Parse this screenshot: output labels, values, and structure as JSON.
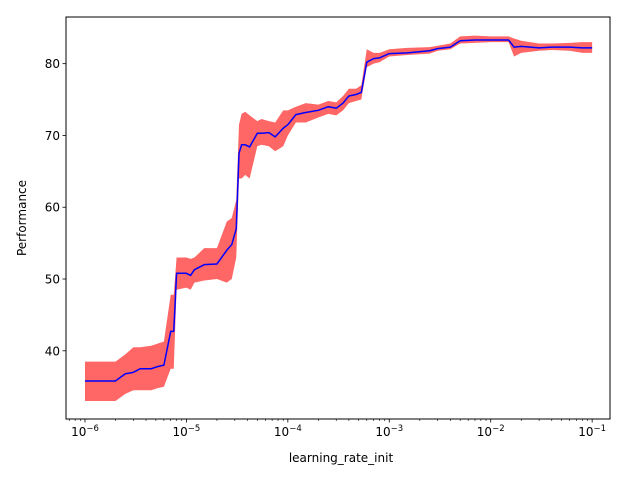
{
  "chart_data": {
    "type": "line",
    "title": "",
    "xlabel": "learning_rate_init",
    "ylabel": "Performance",
    "xscale": "log",
    "xlim": [
      6.5e-07,
      0.15
    ],
    "ylim": [
      30.5,
      86.5
    ],
    "grid": false,
    "legend": "none",
    "x_ticks": [
      {
        "value": 1e-06,
        "base": "10",
        "exp": "−6"
      },
      {
        "value": 1e-05,
        "base": "10",
        "exp": "−5"
      },
      {
        "value": 0.0001,
        "base": "10",
        "exp": "−4"
      },
      {
        "value": 0.001,
        "base": "10",
        "exp": "−3"
      },
      {
        "value": 0.01,
        "base": "10",
        "exp": "−2"
      },
      {
        "value": 0.1,
        "base": "10",
        "exp": "−1"
      }
    ],
    "y_ticks": [
      40,
      50,
      60,
      70,
      80
    ],
    "colors": {
      "line": "#0000ff",
      "band": "#ff0000",
      "band_opacity": 0.6
    },
    "series": [
      {
        "x": [
          1e-06,
          2e-06,
          2.5e-06,
          3e-06,
          3.5e-06,
          4.5e-06,
          5.2e-06,
          6e-06,
          7e-06,
          7.5e-06,
          8e-06,
          1e-05,
          1.1e-05,
          1.2e-05,
          1.5e-05,
          2e-05,
          2.5e-05,
          2.8e-05,
          3.1e-05,
          3.3e-05,
          3.5e-05,
          3.8e-05,
          4.2e-05,
          5e-05,
          5.5e-05,
          6.5e-05,
          7.5e-05,
          9e-05,
          0.0001,
          0.00012,
          0.00015,
          0.0002,
          0.00025,
          0.0003,
          0.00035,
          0.0004,
          0.00047,
          0.00053,
          0.0006,
          0.0007,
          0.0008,
          0.001,
          0.0015,
          0.0025,
          0.003,
          0.004,
          0.005,
          0.007,
          0.01,
          0.015,
          0.017,
          0.02,
          0.03,
          0.04,
          0.06,
          0.08,
          0.1
        ],
        "y": [
          35.8,
          35.8,
          36.8,
          37.0,
          37.5,
          37.5,
          37.8,
          38.0,
          42.7,
          42.7,
          50.8,
          50.8,
          50.5,
          51.3,
          52.0,
          52.1,
          54.0,
          54.8,
          57.0,
          67.5,
          68.7,
          68.7,
          68.4,
          70.3,
          70.3,
          70.4,
          69.8,
          71.0,
          71.5,
          72.9,
          73.2,
          73.5,
          74.0,
          73.8,
          74.5,
          75.5,
          75.7,
          76.0,
          80.2,
          80.7,
          80.8,
          81.4,
          81.5,
          81.8,
          82.1,
          82.3,
          83.2,
          83.3,
          83.3,
          83.3,
          82.3,
          82.4,
          82.2,
          82.3,
          82.3,
          82.2,
          82.2
        ],
        "lower": [
          33.0,
          33.0,
          34.0,
          34.5,
          34.5,
          34.5,
          34.8,
          35.0,
          37.5,
          37.5,
          48.5,
          48.8,
          48.5,
          49.5,
          49.8,
          50.0,
          49.5,
          50.0,
          53.0,
          64.0,
          64.0,
          64.5,
          64.0,
          68.5,
          68.7,
          68.5,
          67.8,
          68.5,
          70.0,
          71.8,
          71.8,
          72.5,
          73.0,
          72.8,
          73.5,
          74.5,
          74.8,
          75.0,
          79.5,
          80.0,
          80.2,
          81.0,
          81.2,
          81.4,
          81.8,
          82.0,
          82.8,
          82.9,
          83.0,
          83.0,
          81.0,
          81.5,
          81.8,
          81.9,
          81.8,
          81.5,
          81.5
        ],
        "upper": [
          38.5,
          38.5,
          39.5,
          40.5,
          40.5,
          40.7,
          41.0,
          41.3,
          47.8,
          47.8,
          53.0,
          53.0,
          52.8,
          53.0,
          54.3,
          54.3,
          58.0,
          58.5,
          61.0,
          71.5,
          73.0,
          73.3,
          72.8,
          72.0,
          72.3,
          72.0,
          71.8,
          73.5,
          73.5,
          74.0,
          74.5,
          74.3,
          74.8,
          74.6,
          75.5,
          76.5,
          76.5,
          77.0,
          82.0,
          81.5,
          81.5,
          82.0,
          82.2,
          82.3,
          82.5,
          82.8,
          83.8,
          83.9,
          83.8,
          83.8,
          83.5,
          83.2,
          82.8,
          82.8,
          82.9,
          83.0,
          83.0
        ]
      }
    ]
  }
}
